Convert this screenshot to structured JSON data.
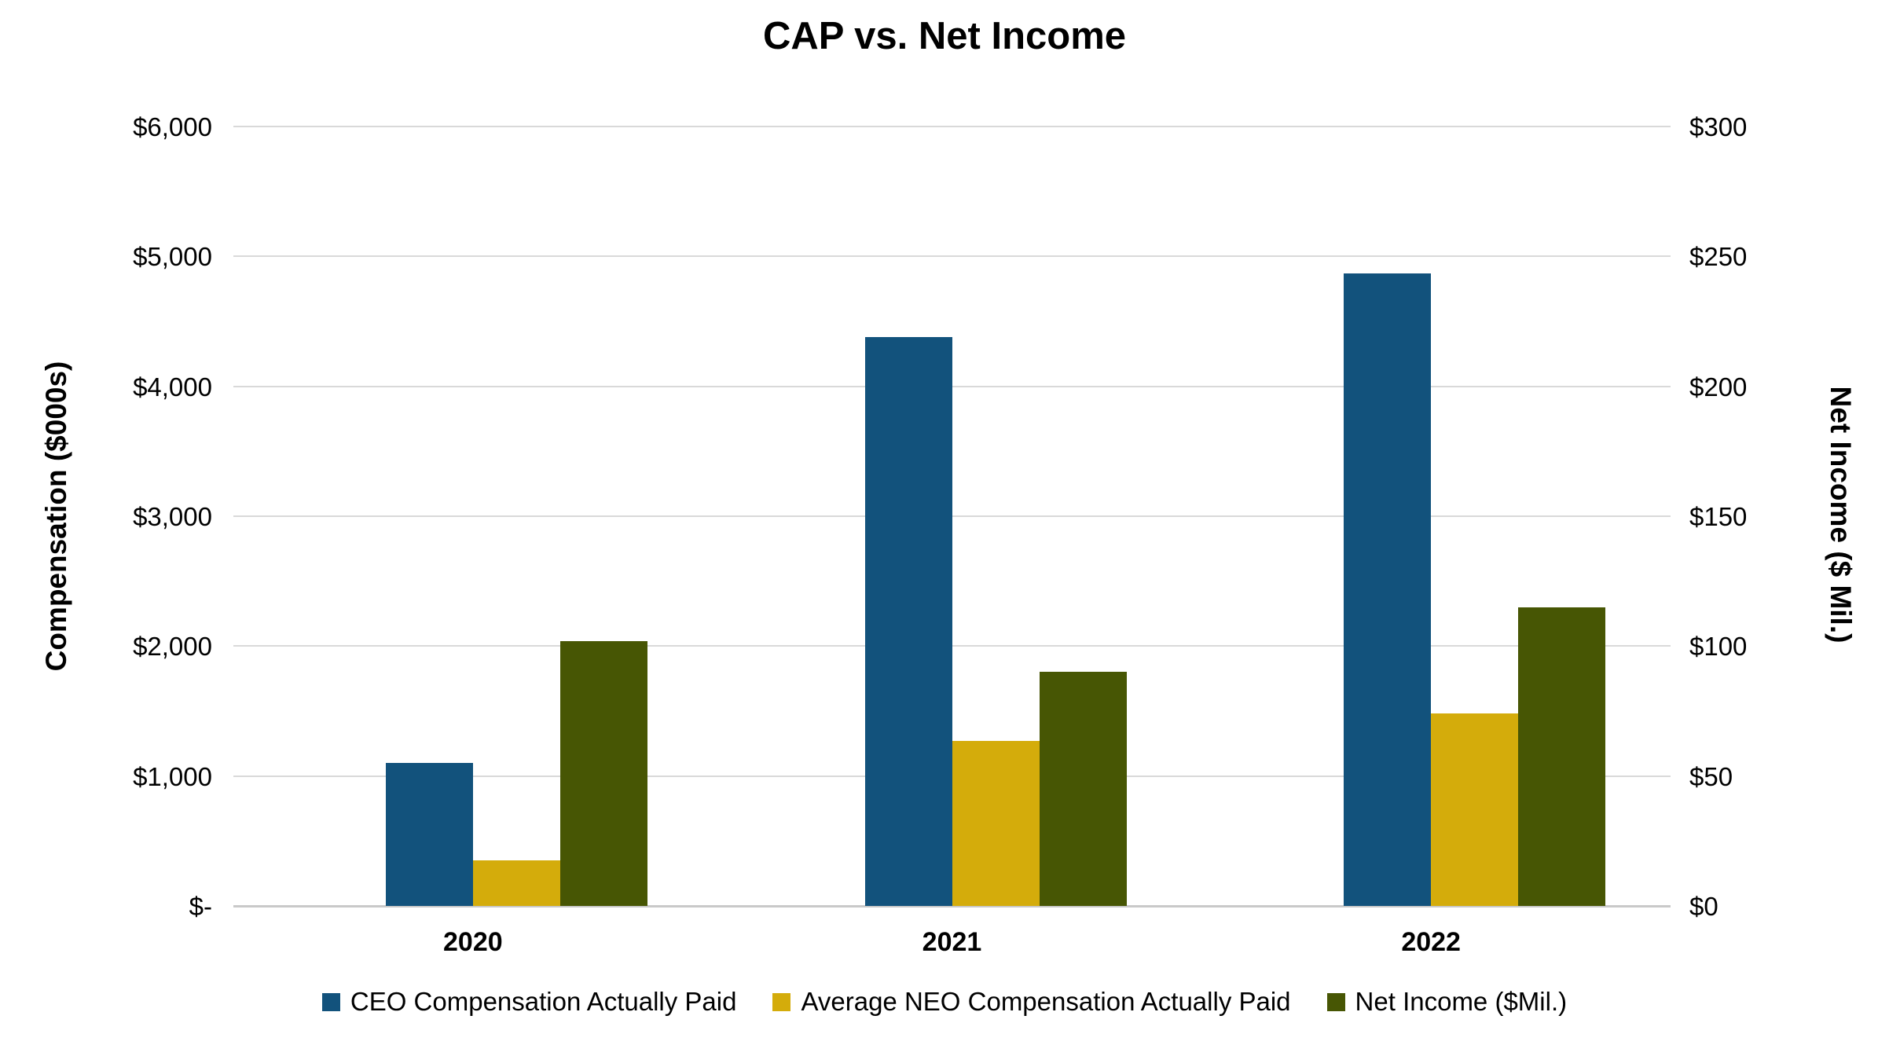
{
  "title": "CAP vs. Net Income",
  "axes": {
    "left": {
      "title": "Compensation ($000s)",
      "ticks": [
        "$6,000",
        "$5,000",
        "$4,000",
        "$3,000",
        "$2,000",
        "$1,000",
        "$-"
      ],
      "max": 6000
    },
    "right": {
      "title": "Net Income ($ Mil.)",
      "ticks": [
        "$300",
        "$250",
        "$200",
        "$150",
        "$100",
        "$50",
        "$0"
      ],
      "max": 300
    },
    "x": {
      "categories": [
        "2020",
        "2021",
        "2022"
      ]
    }
  },
  "legend": [
    {
      "label": "CEO Compensation Actually Paid",
      "color": "#12527C"
    },
    {
      "label": "Average NEO Compensation Actually Paid",
      "color": "#D4AC0B"
    },
    {
      "label": "Net Income ($Mil.)",
      "color": "#475604"
    }
  ],
  "chart_data": {
    "type": "bar",
    "categories": [
      "2020",
      "2021",
      "2022"
    ],
    "series": [
      {
        "name": "CEO Compensation Actually Paid",
        "axis": "left",
        "color": "#12527C",
        "values": [
          1100,
          4380,
          4870
        ]
      },
      {
        "name": "Average NEO Compensation Actually Paid",
        "axis": "left",
        "color": "#D4AC0B",
        "values": [
          350,
          1270,
          1480
        ]
      },
      {
        "name": "Net Income ($Mil.)",
        "axis": "right",
        "color": "#475604",
        "values": [
          102,
          90,
          115
        ]
      }
    ],
    "title": "CAP vs. Net Income",
    "left_ylabel": "Compensation ($000s)",
    "left_ylim": [
      0,
      6000
    ],
    "right_ylabel": "Net Income ($ Mil.)",
    "right_ylim": [
      0,
      300
    ],
    "grid": true,
    "legend_position": "bottom"
  },
  "colors": {
    "gridline": "#D9D9D9",
    "axis_line": "#C9C9C9",
    "text": "#000000",
    "background": "#FFFFFF"
  }
}
